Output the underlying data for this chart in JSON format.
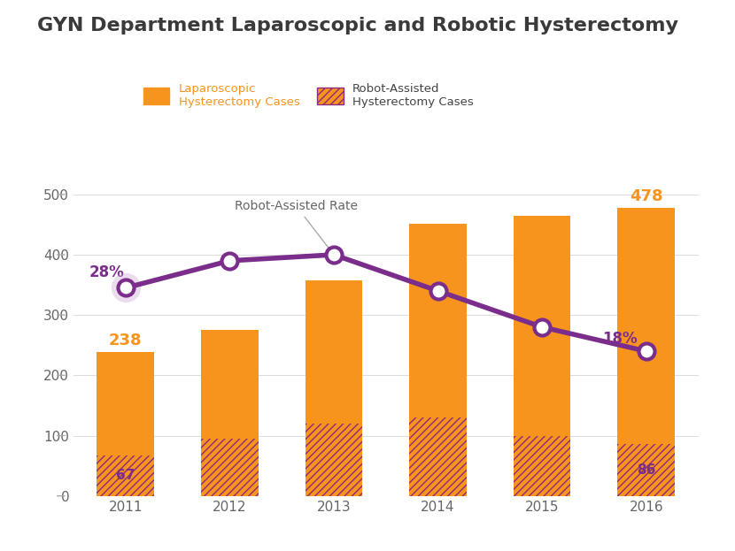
{
  "title": "GYN Department Laparoscopic and Robotic Hysterectomy",
  "years": [
    2011,
    2012,
    2013,
    2014,
    2015,
    2016
  ],
  "laparoscopic_total": [
    238,
    275,
    357,
    452,
    465,
    478
  ],
  "robotic_cases": [
    67,
    95,
    120,
    130,
    100,
    86
  ],
  "robot_rate_line": [
    345,
    390,
    400,
    340,
    280,
    240
  ],
  "bar_color_orange": "#F7941D",
  "hatch_color": "#8B2A7E",
  "line_color": "#7B2D8B",
  "marker_face_color": "#FFFFFF",
  "title_color": "#3a3a3a",
  "annotation_orange": "#F7941D",
  "annotation_purple": "#7B2D8B",
  "background_color": "#FFFFFF",
  "ylim": [
    0,
    530
  ],
  "yticks": [
    0,
    100,
    200,
    300,
    400,
    500
  ]
}
